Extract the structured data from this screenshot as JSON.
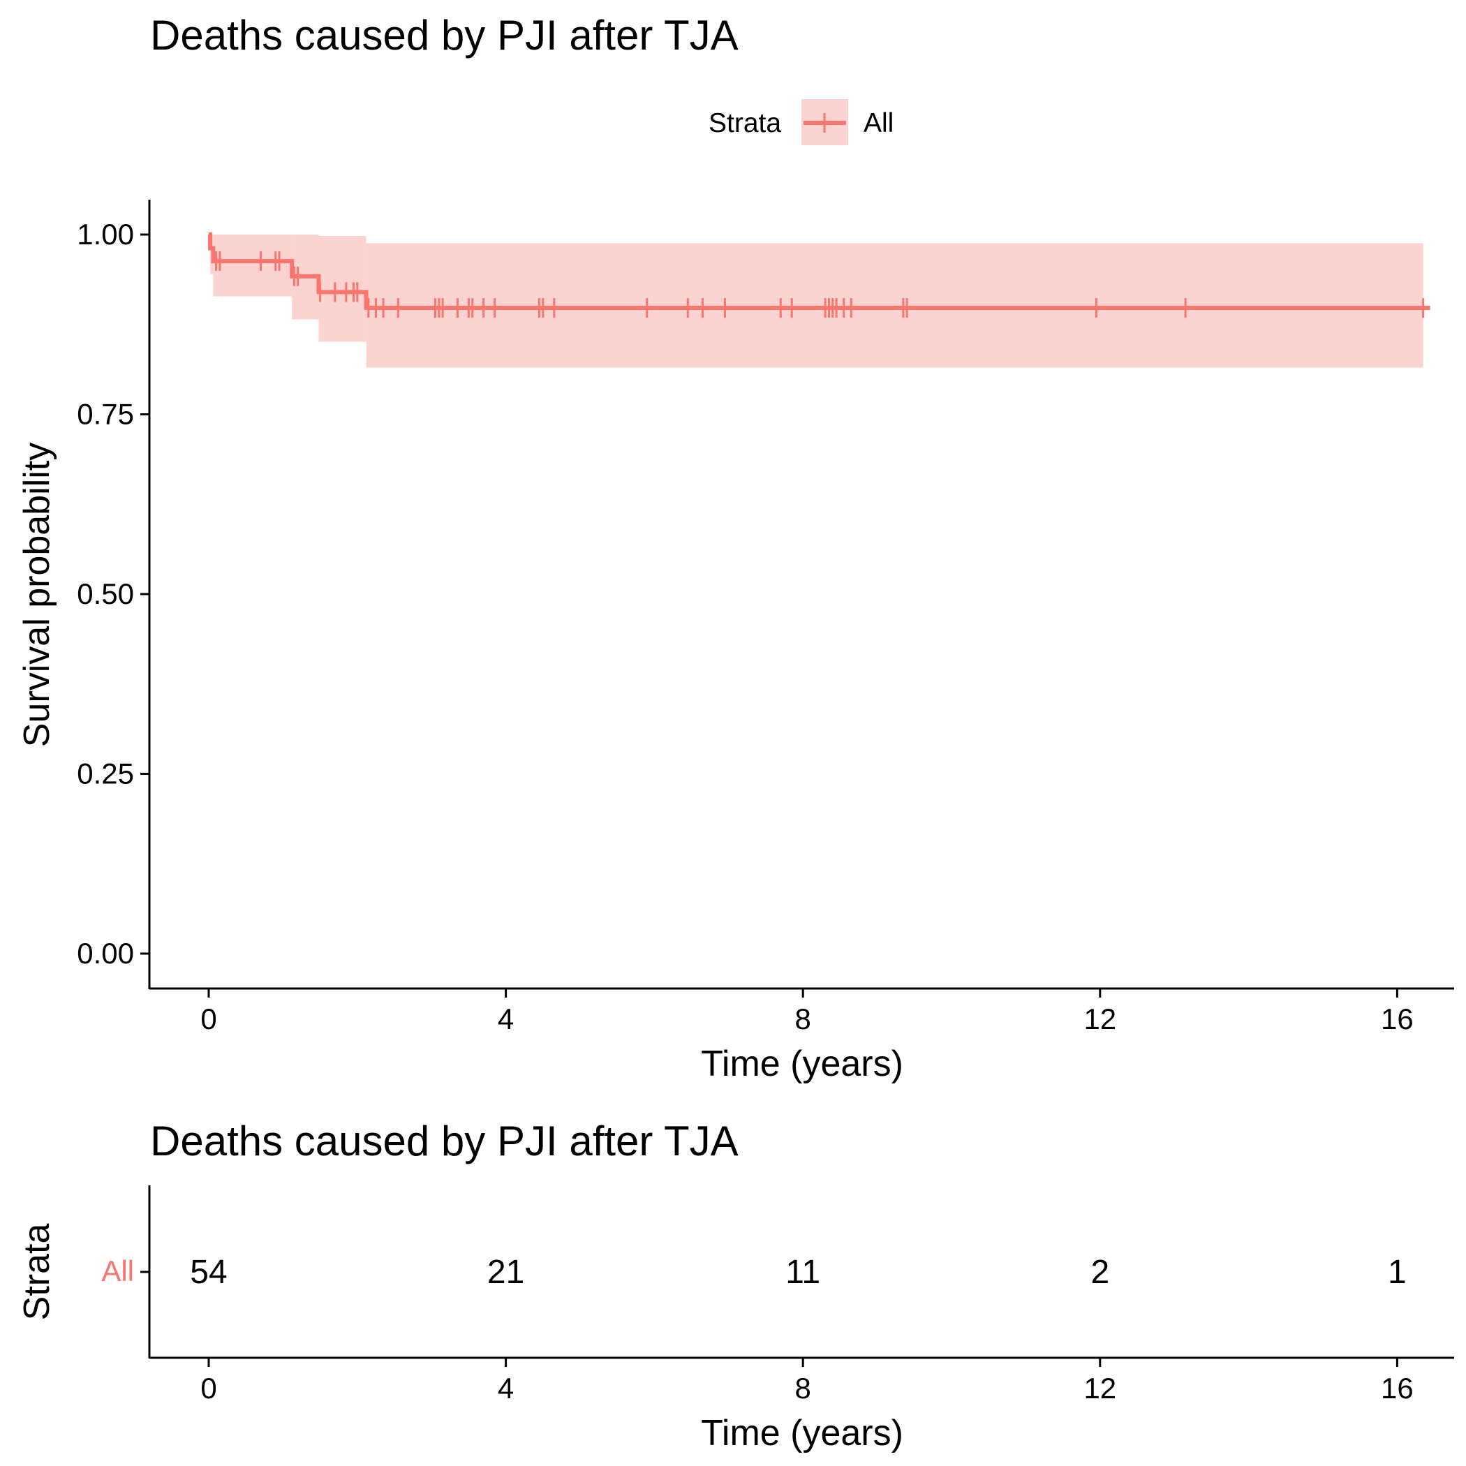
{
  "chart_data": [
    {
      "type": "line",
      "subtype": "kaplan-meier survival curve",
      "title": "Deaths caused by PJI after TJA",
      "xlabel": "Time (years)",
      "ylabel": "Survival probability",
      "xlim": [
        -0.8,
        16.8
      ],
      "ylim": [
        -0.05,
        1.05
      ],
      "xticks": [
        0,
        4,
        8,
        12,
        16
      ],
      "xtick_labels": [
        "0",
        "4",
        "8",
        "12",
        "16"
      ],
      "yticks": [
        0,
        0.25,
        0.5,
        0.75,
        1.0
      ],
      "ytick_labels": [
        "0.00",
        "0.25",
        "0.50",
        "0.75",
        "1.00"
      ],
      "grid": false,
      "legend": {
        "position": "top",
        "title": "Strata",
        "entries": [
          "All"
        ]
      },
      "series": [
        {
          "name": "All",
          "color": "#F8766D",
          "ci_color": "#FBD3D1",
          "steps": [
            {
              "t": 0.0,
              "surv": 1.0,
              "lower": 1.0,
              "upper": 1.0
            },
            {
              "t": 0.02,
              "surv": 0.981,
              "lower": 0.945,
              "upper": 1.0
            },
            {
              "t": 0.06,
              "surv": 0.963,
              "lower": 0.914,
              "upper": 1.0
            },
            {
              "t": 1.12,
              "surv": 0.942,
              "lower": 0.882,
              "upper": 1.0
            },
            {
              "t": 1.48,
              "surv": 0.92,
              "lower": 0.851,
              "upper": 0.998
            },
            {
              "t": 2.12,
              "surv": 0.898,
              "lower": 0.815,
              "upper": 0.988
            }
          ],
          "end_time": 16.35,
          "censor_times": [
            0.1,
            0.15,
            0.7,
            0.9,
            0.95,
            1.15,
            1.2,
            1.5,
            1.7,
            1.85,
            1.95,
            2.0,
            2.15,
            2.25,
            2.35,
            2.55,
            3.05,
            3.1,
            3.15,
            3.35,
            3.5,
            3.55,
            3.7,
            3.85,
            4.45,
            4.5,
            4.65,
            5.9,
            6.45,
            6.65,
            6.95,
            7.7,
            7.85,
            8.3,
            8.35,
            8.4,
            8.45,
            8.55,
            8.65,
            9.35,
            9.4,
            11.95,
            13.15,
            16.35
          ]
        }
      ]
    },
    {
      "type": "table",
      "subtype": "number at risk",
      "title": "Deaths caused by PJI after TJA",
      "xlabel": "Time (years)",
      "ylabel": "Strata",
      "xlim": [
        -0.8,
        16.8
      ],
      "xticks": [
        0,
        4,
        8,
        12,
        16
      ],
      "xtick_labels": [
        "0",
        "4",
        "8",
        "12",
        "16"
      ],
      "rows": [
        {
          "strata": "All",
          "color": "#F8766D",
          "times": [
            0,
            4,
            8,
            12,
            16
          ],
          "values": [
            "54",
            "21",
            "11",
            "2",
            "1"
          ]
        }
      ]
    }
  ]
}
